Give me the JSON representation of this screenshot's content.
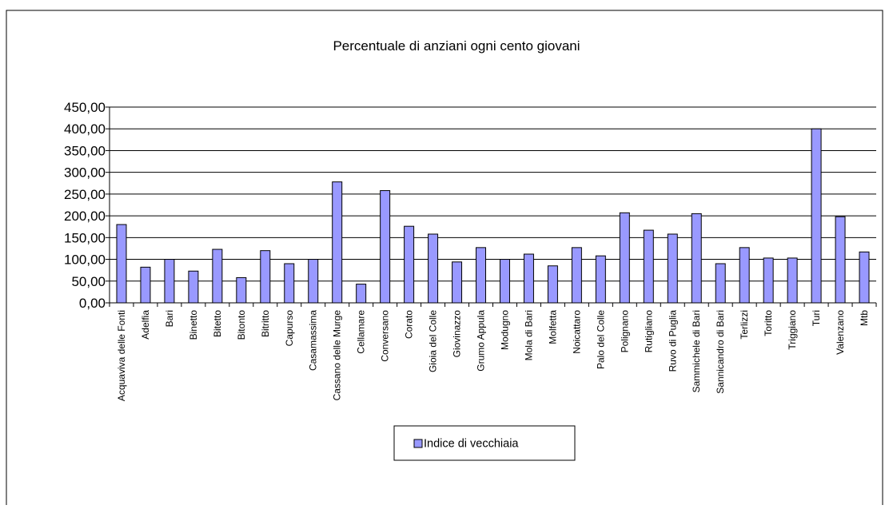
{
  "chart_data": {
    "type": "bar",
    "title": "Percentuale di anziani ogni cento giovani",
    "xlabel": "",
    "ylabel": "",
    "ylim": [
      0,
      450
    ],
    "yticks": [
      "0,00",
      "50,00",
      "100,00",
      "150,00",
      "200,00",
      "250,00",
      "300,00",
      "350,00",
      "400,00",
      "450,00"
    ],
    "grid": true,
    "legend_position": "bottom-center",
    "categories": [
      "Acquaviva delle Fonti",
      "Adelfia",
      "Bari",
      "Binetto",
      "Bitetto",
      "Bitonto",
      "Bitritto",
      "Capurso",
      "Casamassima",
      "Cassano delle Murge",
      "Cellamare",
      "Conversano",
      "Corato",
      "Gioia del Colle",
      "Giovinazzo",
      "Grumo Appula",
      "Modugno",
      "Mola di Bari",
      "Molfetta",
      "Noicattaro",
      "Palo del Colle",
      "Polignano",
      "Rutigliano",
      "Ruvo di Puglia",
      "Sammichele di Bari",
      "Sannicandro di Bari",
      "Terlizzi",
      "Toritto",
      "Triggiano",
      "Turi",
      "Valenzano",
      "Mtb"
    ],
    "series": [
      {
        "name": "Indice di vecchiaia",
        "color": "#9999ff",
        "values": [
          180,
          82,
          100,
          73,
          123,
          58,
          120,
          90,
          100,
          278,
          43,
          258,
          176,
          158,
          94,
          127,
          100,
          112,
          85,
          127,
          108,
          207,
          167,
          158,
          205,
          90,
          127,
          103,
          103,
          400,
          198,
          117
        ]
      }
    ]
  }
}
